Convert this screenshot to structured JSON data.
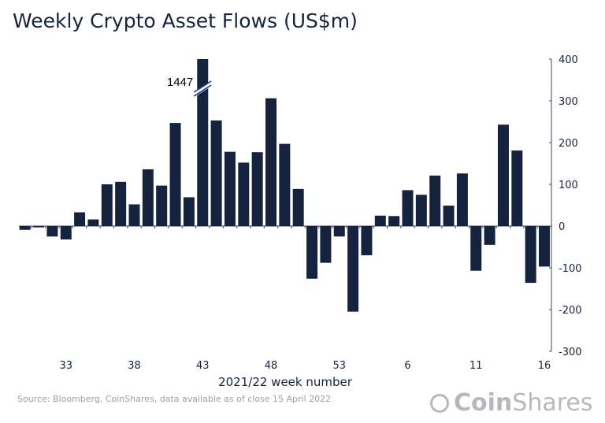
{
  "title": "Weekly Crypto Asset Flows (US$m)",
  "source": "Source: Bloomberg, CoinShares, data available as of close 15 April 2022",
  "logo": {
    "part1": "Coin",
    "part2": "Shares"
  },
  "colors": {
    "bar": "#15233f",
    "axis": "#3a4560",
    "break": "#1b3a8a"
  },
  "chart_data": {
    "type": "bar",
    "title": "Weekly Crypto Asset Flows (US$m)",
    "xlabel": "2021/22 week number",
    "ylabel": "",
    "ylim": [
      -300,
      400
    ],
    "yticks": [
      400,
      300,
      200,
      100,
      0,
      -100,
      -200,
      -300
    ],
    "y_axis_side": "right",
    "xtick_labels": [
      "33",
      "38",
      "43",
      "48",
      "53",
      "6",
      "11",
      "16"
    ],
    "categories": [
      "30",
      "31",
      "32",
      "33",
      "34",
      "35",
      "36",
      "37",
      "38",
      "39",
      "40",
      "41",
      "42",
      "43",
      "44",
      "45",
      "46",
      "47",
      "48",
      "49",
      "50",
      "51",
      "52",
      "53",
      "2",
      "3",
      "4",
      "5",
      "6",
      "7",
      "8",
      "9",
      "10",
      "11",
      "12",
      "13",
      "14",
      "15",
      "16"
    ],
    "values": [
      -9,
      -3,
      -25,
      -32,
      33,
      16,
      100,
      106,
      52,
      136,
      97,
      247,
      69,
      1447,
      253,
      178,
      152,
      177,
      306,
      197,
      89,
      -126,
      -88,
      -25,
      -205,
      -70,
      25,
      24,
      86,
      75,
      121,
      49,
      126,
      -107,
      -45,
      243,
      181,
      -136,
      -97
    ],
    "annotations": [
      {
        "category": "43",
        "text": "1447"
      }
    ],
    "grid": false,
    "legend": "none"
  }
}
